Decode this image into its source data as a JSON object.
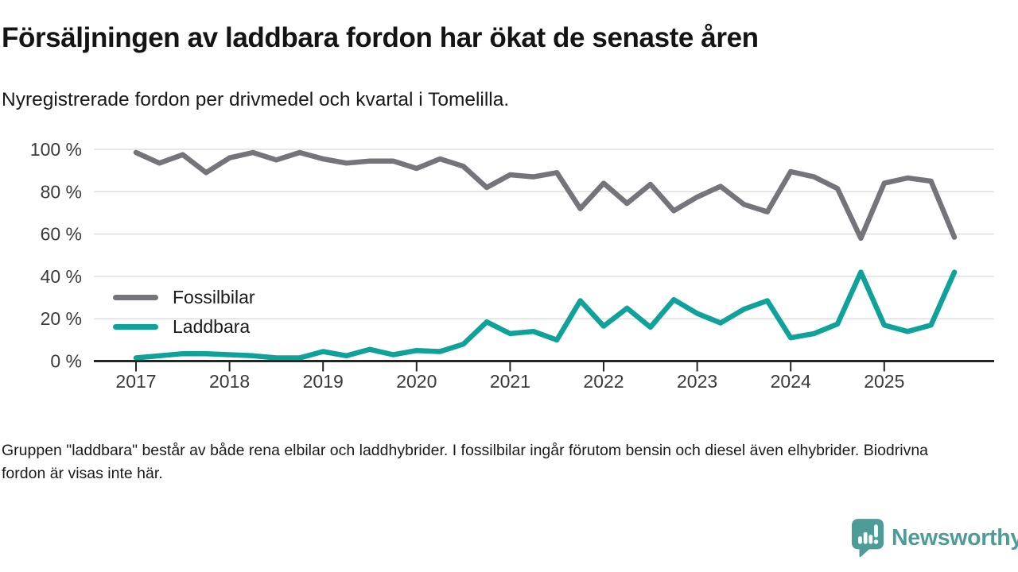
{
  "header": {
    "title": "Försäljningen av laddbara fordon har ökat de senaste åren",
    "subtitle": "Nyregistrerade fordon per drivmedel och kvartal i Tomelilla."
  },
  "chart_data": {
    "type": "line",
    "title": "Försäljningen av laddbara fordon har ökat de senaste åren",
    "subtitle": "Nyregistrerade fordon per drivmedel och kvartal i Tomelilla.",
    "xlabel": "",
    "ylabel": "",
    "ylim": [
      0,
      100
    ],
    "grid": "horizontal",
    "legend_position": "inside-left",
    "x": [
      "2017 Q1",
      "2017 Q2",
      "2017 Q3",
      "2017 Q4",
      "2018 Q1",
      "2018 Q2",
      "2018 Q3",
      "2018 Q4",
      "2019 Q1",
      "2019 Q2",
      "2019 Q3",
      "2019 Q4",
      "2020 Q1",
      "2020 Q2",
      "2020 Q3",
      "2020 Q4",
      "2021 Q1",
      "2021 Q2",
      "2021 Q3",
      "2021 Q4",
      "2022 Q1",
      "2022 Q2",
      "2022 Q3",
      "2022 Q4",
      "2023 Q1",
      "2023 Q2",
      "2023 Q3",
      "2023 Q4",
      "2024 Q1",
      "2024 Q2",
      "2024 Q3",
      "2024 Q4",
      "2025 Q1",
      "2025 Q2",
      "2025 Q3",
      "2025 Q4"
    ],
    "x_tick_labels": [
      "2017",
      "2018",
      "2019",
      "2020",
      "2021",
      "2022",
      "2023",
      "2024",
      "2025"
    ],
    "y_ticks": [
      0,
      20,
      40,
      60,
      80,
      100
    ],
    "y_tick_labels": [
      "0 %",
      "20 %",
      "40 %",
      "60 %",
      "80 %",
      "100 %"
    ],
    "y_unit": "%",
    "series": [
      {
        "name": "Fossilbilar",
        "color": "#74747a",
        "values": [
          98.5,
          93.5,
          97.5,
          89,
          96,
          98.5,
          95,
          98.5,
          95.5,
          93.5,
          94.5,
          94.5,
          91,
          95.5,
          92,
          82,
          88,
          87,
          89,
          72,
          84,
          74.5,
          83.5,
          71,
          77.5,
          82.5,
          74,
          70.5,
          89.5,
          87,
          81.5,
          58,
          84,
          86.5,
          85,
          58.5
        ]
      },
      {
        "name": "Laddbara",
        "color": "#0ea29a",
        "values": [
          1.5,
          2.5,
          3.5,
          3.5,
          3,
          2.5,
          1.5,
          1.5,
          4.5,
          2.5,
          5.5,
          3,
          5,
          4.5,
          8,
          18.5,
          13,
          14,
          10,
          28.5,
          16.5,
          25,
          16,
          29,
          22.5,
          18,
          24.5,
          28.5,
          11,
          13,
          17.5,
          42,
          17,
          14,
          17,
          42
        ]
      }
    ]
  },
  "footer": {
    "note": "Gruppen \"laddbara\" består av både rena elbilar och laddhybrider. I fossilbilar ingår förutom bensin och diesel även elhybrider. Biodrivna fordon är visas inte här."
  },
  "branding": {
    "logo_text": "Newsworthy",
    "logo_color": "#4d9c98",
    "logo_icon": "speech-bubble-bar-chart-icon"
  }
}
